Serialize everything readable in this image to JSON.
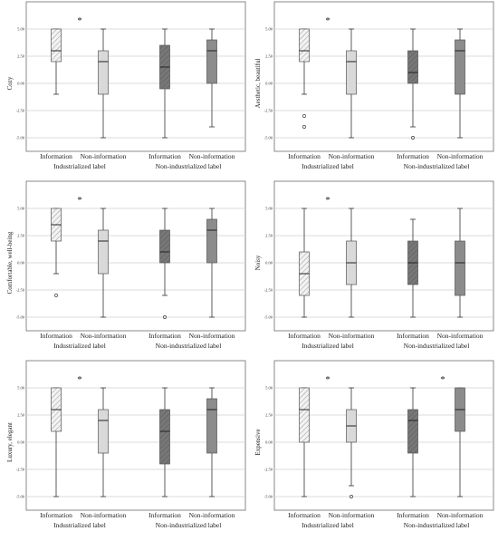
{
  "colors": {
    "information_industrialized": "#f2f2f2",
    "non_information_industrialized": "#d9d9d9",
    "information_non_industrialized": "#777777",
    "non_information_non_industrialized": "#8c8c8c",
    "grid": "#cfcfcf",
    "frame": "#6b6b6b"
  },
  "chart_data": [
    {
      "type": "box",
      "ylabel": "Cozy",
      "ylim": [
        -5,
        5
      ],
      "yticks": [
        "5.00",
        "2.50",
        "0.00",
        "-2.50",
        "-5.00"
      ],
      "categories": [
        "Information",
        "Non-information",
        "Information",
        "Non-information"
      ],
      "groups": [
        "Industrialized label",
        "Non-industrialized label"
      ],
      "significance": [
        "*"
      ],
      "boxes": [
        {
          "min": -1,
          "q1": 2,
          "median": 3,
          "q3": 5,
          "max": 5,
          "outliers": []
        },
        {
          "min": -5,
          "q1": -1,
          "median": 2,
          "q3": 3,
          "max": 5,
          "outliers": []
        },
        {
          "min": -5,
          "q1": -0.5,
          "median": 1.5,
          "q3": 3.5,
          "max": 5,
          "outliers": []
        },
        {
          "min": -4,
          "q1": 0,
          "median": 3,
          "q3": 4,
          "max": 5,
          "outliers": []
        }
      ]
    },
    {
      "type": "box",
      "ylabel": "Aesthetic, beautiful",
      "ylim": [
        -5,
        5
      ],
      "yticks": [
        "5.00",
        "2.50",
        "0.00",
        "-2.50",
        "-5.00"
      ],
      "categories": [
        "Information",
        "Non-information",
        "Information",
        "Non-information"
      ],
      "groups": [
        "Industrialized label",
        "Non-industrialized label"
      ],
      "significance": [
        "*"
      ],
      "boxes": [
        {
          "min": -1,
          "q1": 2,
          "median": 3,
          "q3": 5,
          "max": 5,
          "outliers": [
            -3,
            -4
          ]
        },
        {
          "min": -5,
          "q1": -1,
          "median": 2,
          "q3": 3,
          "max": 5,
          "outliers": []
        },
        {
          "min": -4,
          "q1": 0,
          "median": 1,
          "q3": 3,
          "max": 5,
          "outliers": [
            -5
          ]
        },
        {
          "min": -5,
          "q1": -1,
          "median": 3,
          "q3": 4,
          "max": 5,
          "outliers": []
        }
      ]
    },
    {
      "type": "box",
      "ylabel": "Comfortable, well-being",
      "ylim": [
        -5,
        5
      ],
      "yticks": [
        "5.00",
        "2.50",
        "0.00",
        "-2.50",
        "-5.00"
      ],
      "categories": [
        "Information",
        "Non-information",
        "Information",
        "Non-information"
      ],
      "groups": [
        "Industrialized label",
        "Non-industrialized label"
      ],
      "significance": [
        "*"
      ],
      "boxes": [
        {
          "min": -1,
          "q1": 2,
          "median": 3.5,
          "q3": 5,
          "max": 5,
          "outliers": [
            -3
          ]
        },
        {
          "min": -5,
          "q1": -1,
          "median": 2,
          "q3": 3,
          "max": 5,
          "outliers": []
        },
        {
          "min": -3,
          "q1": 0,
          "median": 1,
          "q3": 3,
          "max": 5,
          "outliers": [
            -5
          ]
        },
        {
          "min": -5,
          "q1": 0,
          "median": 3,
          "q3": 4,
          "max": 5,
          "outliers": []
        }
      ]
    },
    {
      "type": "box",
      "ylabel": "Noisy",
      "ylim": [
        -5,
        5
      ],
      "yticks": [
        "5.00",
        "2.50",
        "0.00",
        "-2.50",
        "-5.00"
      ],
      "categories": [
        "Information",
        "Non-information",
        "Information",
        "Non-information"
      ],
      "groups": [
        "Industrialized label",
        "Non-industrialized label"
      ],
      "significance": [
        "*"
      ],
      "boxes": [
        {
          "min": -5,
          "q1": -3,
          "median": -1,
          "q3": 1,
          "max": 5,
          "outliers": []
        },
        {
          "min": -5,
          "q1": -2,
          "median": 0,
          "q3": 2,
          "max": 5,
          "outliers": []
        },
        {
          "min": -5,
          "q1": -2,
          "median": 0,
          "q3": 2,
          "max": 4,
          "outliers": []
        },
        {
          "min": -5,
          "q1": -3,
          "median": 0,
          "q3": 2,
          "max": 5,
          "outliers": []
        }
      ]
    },
    {
      "type": "box",
      "ylabel": "Luxury, elegant",
      "ylim": [
        -5,
        5
      ],
      "yticks": [
        "5.00",
        "2.50",
        "0.00",
        "-2.50",
        "-5.00"
      ],
      "categories": [
        "Information",
        "Non-information",
        "Information",
        "Non-information"
      ],
      "groups": [
        "Industrialized label",
        "Non-industrialized label"
      ],
      "significance": [
        "*"
      ],
      "boxes": [
        {
          "min": -5,
          "q1": 1,
          "median": 3,
          "q3": 5,
          "max": 5,
          "outliers": []
        },
        {
          "min": -5,
          "q1": -1,
          "median": 2,
          "q3": 3,
          "max": 5,
          "outliers": []
        },
        {
          "min": -5,
          "q1": -2,
          "median": 1,
          "q3": 3,
          "max": 5,
          "outliers": []
        },
        {
          "min": -5,
          "q1": -1,
          "median": 3,
          "q3": 4,
          "max": 5,
          "outliers": []
        }
      ]
    },
    {
      "type": "box",
      "ylabel": "Expensive",
      "ylim": [
        -5,
        5
      ],
      "yticks": [
        "5.00",
        "2.50",
        "0.00",
        "-2.50",
        "-5.00"
      ],
      "categories": [
        "Information",
        "Non-information",
        "Information",
        "Non-information"
      ],
      "groups": [
        "Industrialized label",
        "Non-industrialized label"
      ],
      "significance": [
        "*",
        "*"
      ],
      "boxes": [
        {
          "min": -5,
          "q1": 0,
          "median": 3,
          "q3": 5,
          "max": 5,
          "outliers": []
        },
        {
          "min": -4,
          "q1": 0,
          "median": 1.5,
          "q3": 3,
          "max": 5,
          "outliers": [
            -5
          ]
        },
        {
          "min": -5,
          "q1": -1,
          "median": 2,
          "q3": 3,
          "max": 5,
          "outliers": []
        },
        {
          "min": -5,
          "q1": 1,
          "median": 3,
          "q3": 5,
          "max": 5,
          "outliers": []
        }
      ]
    }
  ]
}
